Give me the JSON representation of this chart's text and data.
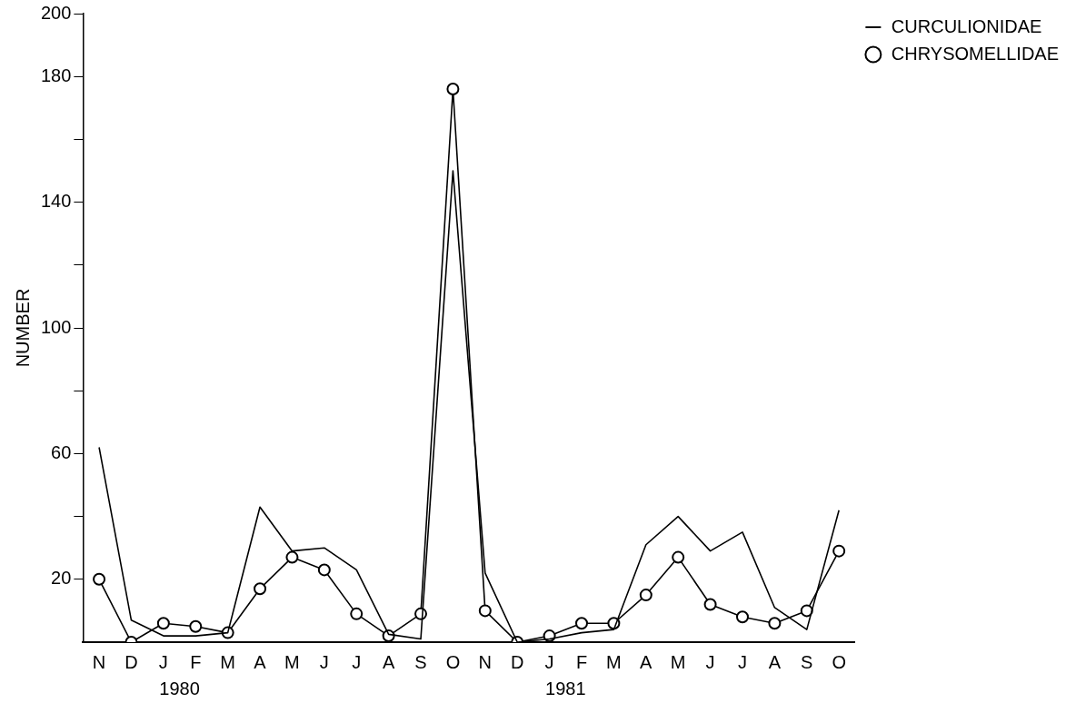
{
  "chart_data": {
    "type": "line",
    "ylabel": "NUMBER",
    "categories": [
      "N",
      "D",
      "J",
      "F",
      "M",
      "A",
      "M",
      "J",
      "J",
      "A",
      "S",
      "O",
      "N",
      "D",
      "J",
      "F",
      "M",
      "A",
      "M",
      "J",
      "J",
      "A",
      "S",
      "O"
    ],
    "series": [
      {
        "name": "CURCULIONIDAE",
        "color": "#000000",
        "marker": "none",
        "values": [
          62,
          7,
          2,
          2,
          3,
          43,
          29,
          30,
          23,
          2.5,
          1,
          150,
          22,
          0,
          1,
          3,
          4,
          31,
          40,
          29,
          35,
          11,
          4,
          42
        ]
      },
      {
        "name": "CHRYSOMELLIDAE",
        "color": "#000000",
        "marker": "circle",
        "values": [
          20,
          0,
          6,
          5,
          3,
          17,
          27,
          23,
          9,
          2,
          9,
          176,
          10,
          0,
          2,
          6,
          6,
          15,
          27,
          12,
          8,
          6,
          10,
          29
        ]
      }
    ],
    "ylim": [
      0,
      200
    ],
    "yticks": [
      20,
      {
        "value": 40,
        "label": null
      },
      60,
      {
        "value": 80,
        "label": null
      },
      100,
      {
        "value": 120,
        "label": null
      },
      140,
      {
        "value": 160,
        "label": null
      },
      180,
      200
    ],
    "grid": false,
    "legend": "top right",
    "line_style": "solid",
    "annotations": [
      "1980",
      "1981"
    ]
  }
}
